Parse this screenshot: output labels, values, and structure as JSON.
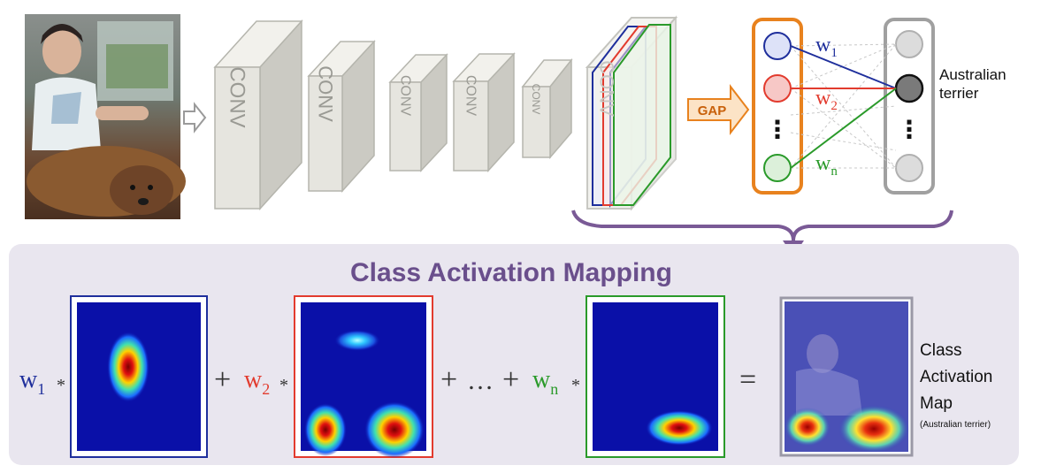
{
  "arrows": {
    "input_arrow_icon": "hollow-right-arrow",
    "gap_label": "GAP"
  },
  "conv_blocks": [
    {
      "label": "CONV"
    },
    {
      "label": "CONV"
    },
    {
      "label": "CONV"
    },
    {
      "label": "CONV"
    },
    {
      "label": "CONV"
    },
    {
      "label": "CONV"
    }
  ],
  "gap_vector": {
    "dots": "⋮"
  },
  "weights": {
    "w1": {
      "base": "w",
      "sub": "1",
      "color": "#1f2f9c"
    },
    "w2": {
      "base": "w",
      "sub": "2",
      "color": "#e23b2e"
    },
    "wn": {
      "base": "w",
      "sub": "n",
      "color": "#2a9a2a"
    }
  },
  "output": {
    "class_label_line1": "Australian",
    "class_label_line2": "terrier",
    "dots": "⋮"
  },
  "cam": {
    "title": "Class Activation Mapping",
    "plus": "+",
    "ellipsis": "…",
    "times": "*",
    "equals": "=",
    "result_line1": "Class",
    "result_line2": "Activation",
    "result_line3": "Map",
    "result_caption": "(Australian terrier)"
  },
  "colors": {
    "panel_bg": "#e9e6ef",
    "title": "#6a4f8c",
    "orange": "#e8821e",
    "blue": "#1f2f9c",
    "red": "#e23b2e",
    "green": "#2a9a2a",
    "heatmap_bg": "#0a10a8"
  }
}
